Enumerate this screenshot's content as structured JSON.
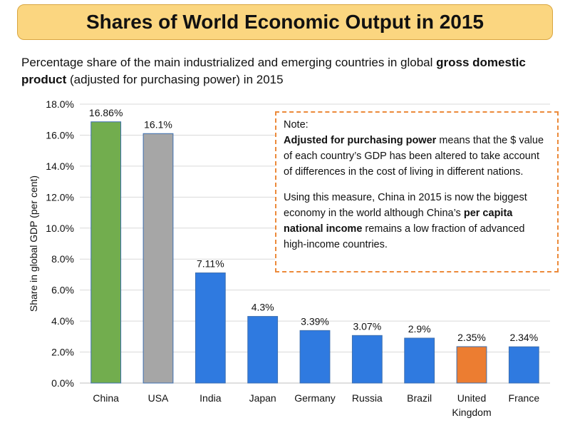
{
  "header": {
    "title": "Shares of World Economic Output in 2015",
    "subtitle_part1": "Percentage share of the main industrialized and emerging countries in global ",
    "subtitle_bold": "gross domestic product",
    "subtitle_part2": " (adjusted for purchasing power) in 2015"
  },
  "note": {
    "heading": "Note:",
    "p1_bold": "Adjusted for purchasing power",
    "p1_rest": " means that the $ value of each country’s GDP has been altered to take account of differences in the cost of living in different nations.",
    "p2_part1": "Using this measure, China in 2015 is now the biggest economy in the world although China’s ",
    "p2_bold": "per capita national income",
    "p2_part2": " remains a low fraction of advanced high-income countries."
  },
  "chart_data": {
    "type": "bar",
    "categories": [
      "China",
      "USA",
      "India",
      "Japan",
      "Germany",
      "Russia",
      "Brazil",
      "United Kingdom",
      "France"
    ],
    "category_lines": [
      [
        "China"
      ],
      [
        "USA"
      ],
      [
        "India"
      ],
      [
        "Japan"
      ],
      [
        "Germany"
      ],
      [
        "Russia"
      ],
      [
        "Brazil"
      ],
      [
        "United",
        "Kingdom"
      ],
      [
        "France"
      ]
    ],
    "values": [
      16.86,
      16.1,
      7.11,
      4.3,
      3.39,
      3.07,
      2.9,
      2.35,
      2.34
    ],
    "value_labels": [
      "16.86%",
      "16.1%",
      "7.11%",
      "4.3%",
      "3.39%",
      "3.07%",
      "2.9%",
      "2.35%",
      "2.34%"
    ],
    "bar_colors": [
      "#72ad4e",
      "#a6a6a6",
      "#2f7ae0",
      "#2f7ae0",
      "#2f7ae0",
      "#2f7ae0",
      "#2f7ae0",
      "#ec7d31",
      "#2f7ae0"
    ],
    "ylabel": "Share in global GDP (per cent)",
    "xlabel": "",
    "ylim": [
      0,
      18
    ],
    "yticks": [
      0,
      2,
      4,
      6,
      8,
      10,
      12,
      14,
      16,
      18
    ],
    "ytick_labels": [
      "0.0%",
      "2.0%",
      "4.0%",
      "6.0%",
      "8.0%",
      "10.0%",
      "12.0%",
      "14.0%",
      "16.0%",
      "18.0%"
    ],
    "grid": true
  }
}
